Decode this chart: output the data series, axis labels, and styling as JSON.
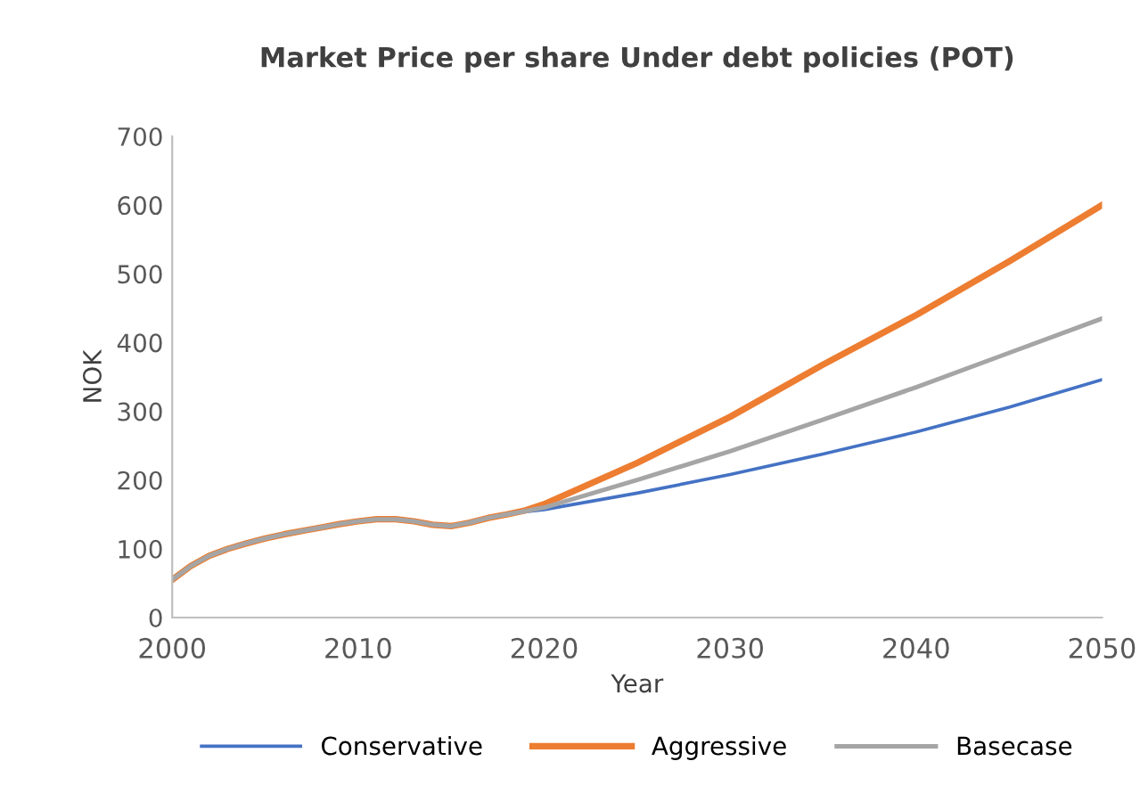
{
  "chart_data": {
    "type": "line",
    "title": "Market Price per share Under debt policies (POT)",
    "xlabel": "Year",
    "ylabel": "NOK",
    "x": [
      2000,
      2001,
      2002,
      2003,
      2004,
      2005,
      2006,
      2007,
      2008,
      2009,
      2010,
      2011,
      2012,
      2013,
      2014,
      2015,
      2016,
      2017,
      2018,
      2019,
      2020,
      2025,
      2030,
      2035,
      2040,
      2045,
      2050
    ],
    "series": [
      {
        "name": "Conservative",
        "color": "#4472c4",
        "values": [
          null,
          null,
          null,
          null,
          null,
          null,
          null,
          null,
          null,
          null,
          null,
          null,
          null,
          null,
          null,
          null,
          null,
          null,
          null,
          154,
          157,
          181,
          208,
          238,
          270,
          306,
          346
        ]
      },
      {
        "name": "Aggressive",
        "color": "#ed7d31",
        "values": [
          55,
          75,
          90,
          100,
          108,
          115,
          121,
          126,
          131,
          136,
          140,
          143,
          143,
          140,
          135,
          133,
          138,
          145,
          150,
          156,
          165,
          225,
          292,
          368,
          440,
          518,
          600
        ]
      },
      {
        "name": "Basecase",
        "color": "#a5a5a5",
        "values": [
          55,
          75,
          90,
          100,
          108,
          115,
          121,
          126,
          131,
          136,
          140,
          143,
          143,
          140,
          135,
          133,
          138,
          145,
          150,
          155,
          160,
          200,
          242,
          288,
          335,
          385,
          435
        ]
      }
    ],
    "xlim": [
      2000,
      2050
    ],
    "xticks": [
      2000,
      2010,
      2020,
      2030,
      2040,
      2050
    ],
    "ylim": [
      0,
      700
    ],
    "yticks": [
      0,
      100,
      200,
      300,
      400,
      500,
      600,
      700
    ],
    "grid": false,
    "legend": "bottom"
  }
}
